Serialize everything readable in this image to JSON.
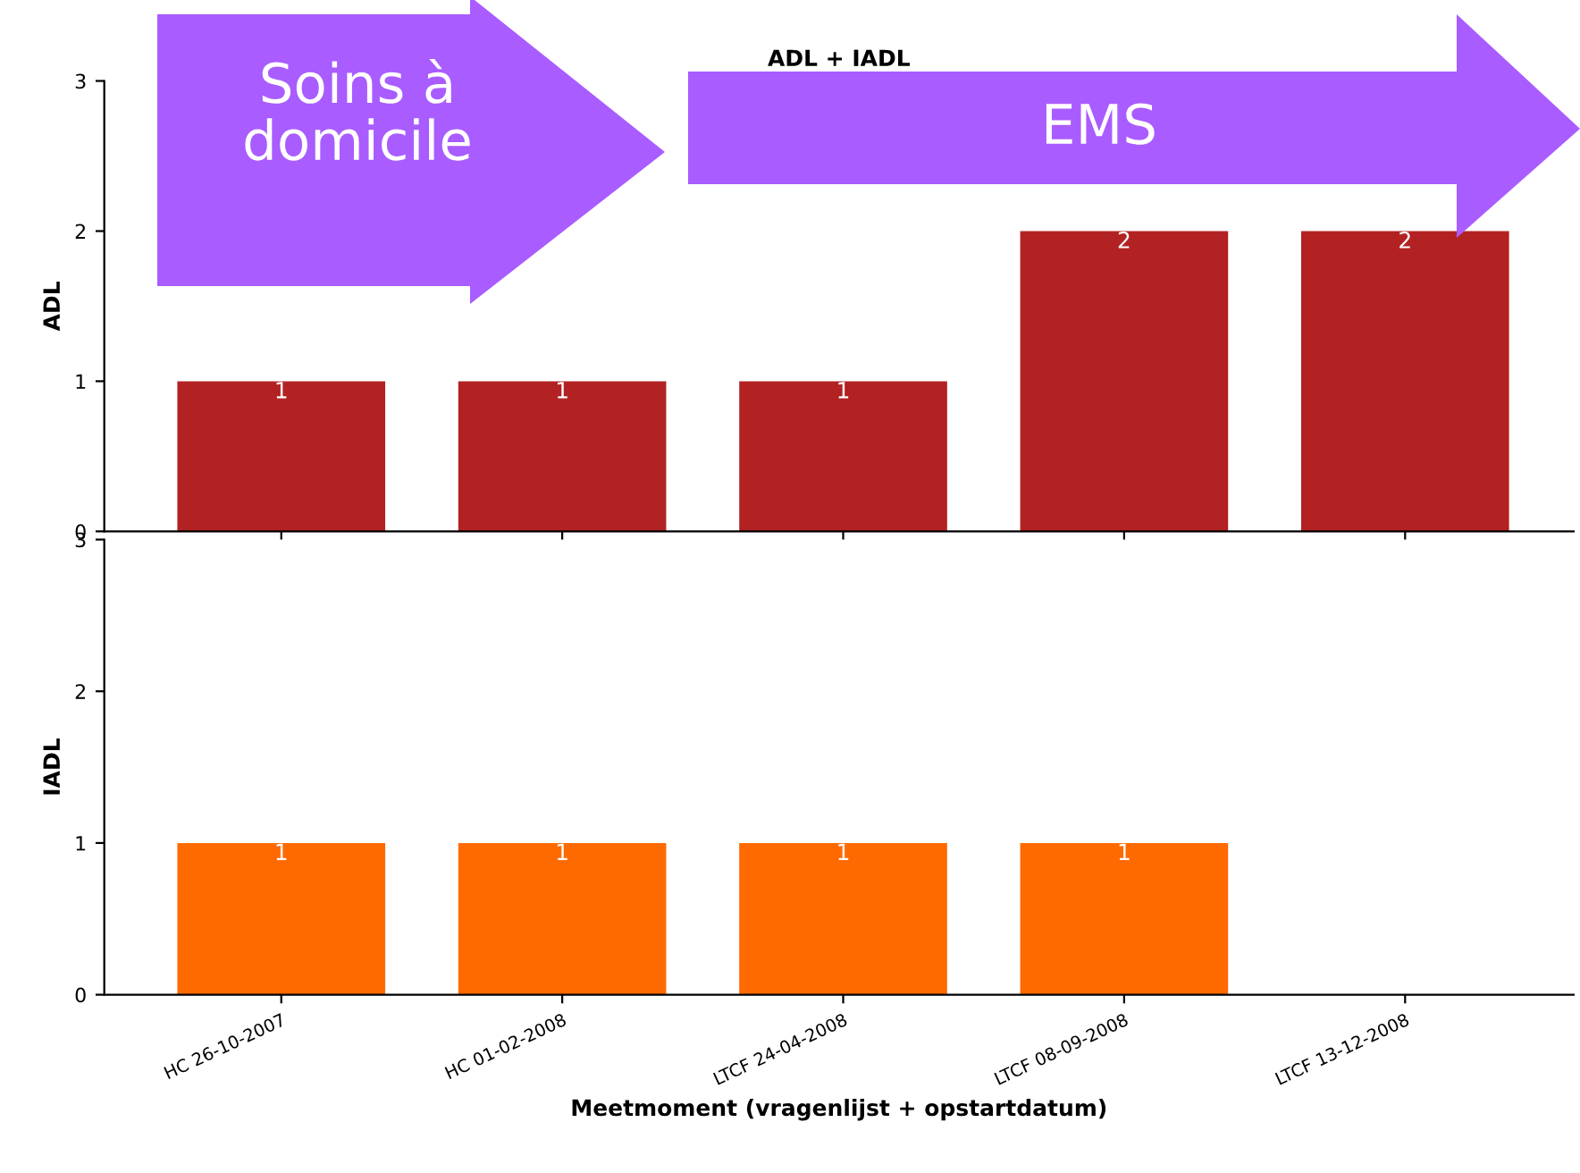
{
  "chart_data": [
    {
      "type": "bar",
      "title": "ADL + IADL",
      "ylabel": "ADL",
      "values": [
        1,
        1,
        1,
        2,
        2
      ],
      "color": "#b22222",
      "ylim": [
        0,
        3
      ],
      "yticks": [
        0,
        1,
        2,
        3
      ],
      "data_labels": true,
      "tick_labels": "y",
      "annotations": [
        "Soins à domicile",
        "EMS"
      ]
    },
    {
      "type": "bar",
      "ylabel": "IADL",
      "xlabel": "Meetmoment (vragenlijst + opstartdatum)",
      "categories": [
        "HC 26-10-2007",
        "HC 01-02-2008",
        "LTCF 24-04-2008",
        "LTCF 08-09-2008",
        "LTCF 13-12-2008"
      ],
      "values": [
        1,
        1,
        1,
        1,
        null
      ],
      "color": "#ff6a00",
      "ylim": [
        0,
        3
      ],
      "yticks": [
        0,
        1,
        2,
        3
      ],
      "data_labels": true
    }
  ]
}
